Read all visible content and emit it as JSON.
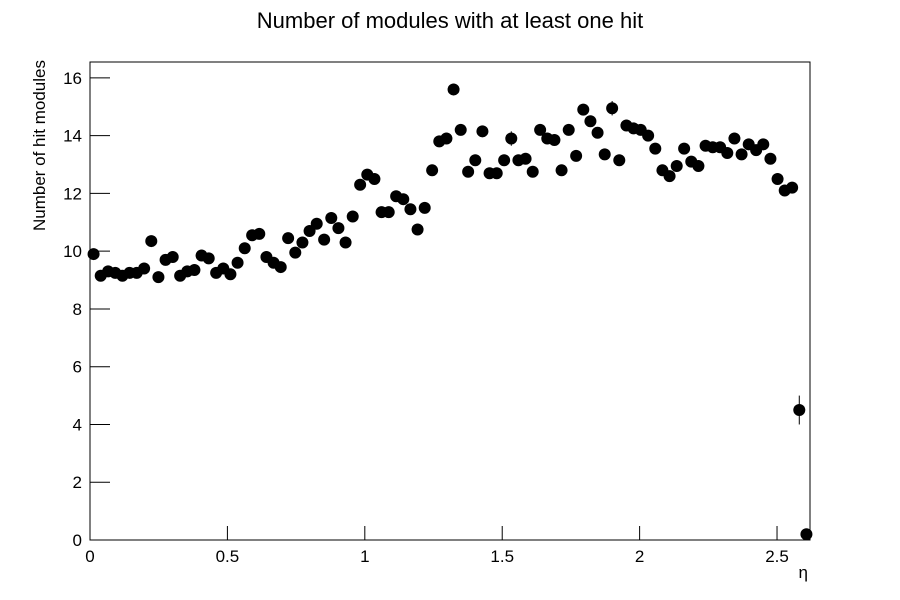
{
  "chart_data": {
    "type": "scatter",
    "title": "Number of modules with at least one hit",
    "x_label": "η",
    "y_label": "Number of hit modules",
    "color": "#000000",
    "xlim": [
      0,
      2.62
    ],
    "ylim": [
      0,
      16.55
    ],
    "xticks": [
      0,
      0.5,
      1,
      1.5,
      2,
      2.5
    ],
    "yticks": [
      0,
      2,
      4,
      6,
      8,
      10,
      12,
      14,
      16
    ],
    "x": [
      0.013,
      0.039,
      0.066,
      0.092,
      0.118,
      0.144,
      0.17,
      0.197,
      0.223,
      0.249,
      0.275,
      0.301,
      0.328,
      0.354,
      0.38,
      0.406,
      0.432,
      0.459,
      0.485,
      0.511,
      0.537,
      0.563,
      0.59,
      0.616,
      0.642,
      0.668,
      0.694,
      0.721,
      0.747,
      0.773,
      0.799,
      0.825,
      0.852,
      0.878,
      0.904,
      0.93,
      0.956,
      0.983,
      1.009,
      1.035,
      1.061,
      1.087,
      1.114,
      1.14,
      1.166,
      1.192,
      1.218,
      1.245,
      1.271,
      1.297,
      1.323,
      1.349,
      1.376,
      1.402,
      1.428,
      1.454,
      1.48,
      1.507,
      1.533,
      1.559,
      1.585,
      1.611,
      1.638,
      1.664,
      1.69,
      1.716,
      1.742,
      1.769,
      1.795,
      1.821,
      1.847,
      1.873,
      1.9,
      1.926,
      1.952,
      1.978,
      2.004,
      2.031,
      2.057,
      2.083,
      2.109,
      2.135,
      2.162,
      2.188,
      2.214,
      2.24,
      2.266,
      2.293,
      2.319,
      2.345,
      2.371,
      2.397,
      2.424,
      2.45,
      2.476,
      2.502,
      2.528,
      2.555,
      2.581,
      2.607
    ],
    "values": [
      9.9,
      9.15,
      9.3,
      9.25,
      9.15,
      9.25,
      9.25,
      9.4,
      10.35,
      9.1,
      9.7,
      9.8,
      9.15,
      9.3,
      9.35,
      9.85,
      9.75,
      9.25,
      9.4,
      9.2,
      9.6,
      10.1,
      10.55,
      10.6,
      9.8,
      9.6,
      9.45,
      10.45,
      9.95,
      10.3,
      10.7,
      10.95,
      10.4,
      11.15,
      10.8,
      10.3,
      11.2,
      12.3,
      12.65,
      12.5,
      11.35,
      11.35,
      11.9,
      11.8,
      11.45,
      10.75,
      11.5,
      12.8,
      13.8,
      13.9,
      15.6,
      14.2,
      12.75,
      13.15,
      14.15,
      12.7,
      12.7,
      13.15,
      13.9,
      13.15,
      13.2,
      12.75,
      14.2,
      13.9,
      13.85,
      12.8,
      14.2,
      13.3,
      14.9,
      14.5,
      14.1,
      13.35,
      14.95,
      13.15,
      14.35,
      14.25,
      14.2,
      14.0,
      13.55,
      12.8,
      12.6,
      12.95,
      13.55,
      13.1,
      12.95,
      13.65,
      13.6,
      13.6,
      13.4,
      13.9,
      13.35,
      13.7,
      13.5,
      13.7,
      13.2,
      12.5,
      12.1,
      12.2,
      4.5,
      0.2
    ],
    "errors": [
      0.1,
      0.1,
      0.1,
      0.1,
      0.1,
      0.1,
      0.1,
      0.1,
      0.1,
      0.1,
      0.1,
      0.1,
      0.1,
      0.1,
      0.1,
      0.1,
      0.1,
      0.1,
      0.1,
      0.1,
      0.1,
      0.1,
      0.1,
      0.1,
      0.1,
      0.1,
      0.1,
      0.1,
      0.1,
      0.1,
      0.1,
      0.1,
      0.1,
      0.1,
      0.1,
      0.1,
      0.1,
      0.1,
      0.1,
      0.1,
      0.1,
      0.1,
      0.1,
      0.1,
      0.1,
      0.1,
      0.1,
      0.1,
      0.1,
      0.1,
      0.2,
      0.15,
      0.1,
      0.1,
      0.1,
      0.1,
      0.1,
      0.1,
      0.25,
      0.1,
      0.1,
      0.1,
      0.1,
      0.1,
      0.1,
      0.1,
      0.1,
      0.1,
      0.1,
      0.1,
      0.1,
      0.1,
      0.25,
      0.15,
      0.1,
      0.1,
      0.1,
      0.1,
      0.1,
      0.1,
      0.1,
      0.1,
      0.1,
      0.1,
      0.1,
      0.1,
      0.1,
      0.1,
      0.1,
      0.1,
      0.15,
      0.1,
      0.1,
      0.1,
      0.1,
      0.1,
      0.1,
      0.1,
      0.5,
      0.1
    ]
  }
}
